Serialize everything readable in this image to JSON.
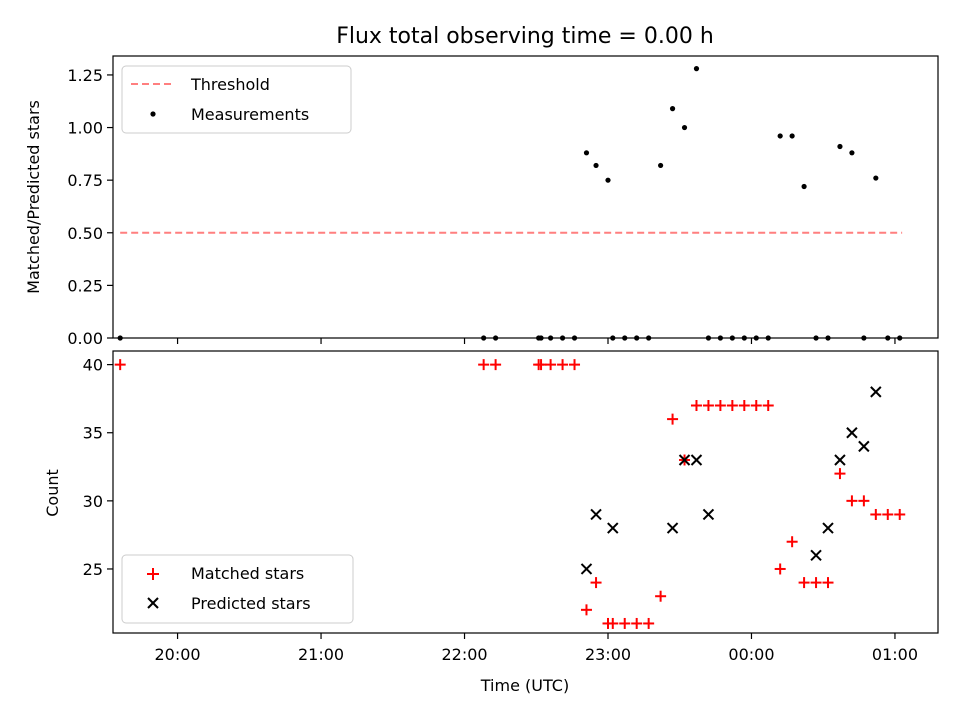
{
  "chart_data": [
    {
      "type": "scatter",
      "title": "Flux total observing time = 0.00 h",
      "xlabel": "",
      "ylabel": "Matched/Predicted stars",
      "ylim": [
        0,
        1.34
      ],
      "yticks": [
        "0.00",
        "0.25",
        "0.50",
        "0.75",
        "1.00",
        "1.25"
      ],
      "xlim": [
        "19:33",
        "01:18"
      ],
      "xticks": [
        "20:00",
        "21:00",
        "22:00",
        "23:00",
        "00:00",
        "01:00"
      ],
      "tick_labels_shown": false,
      "legend_position": "upper left",
      "series": [
        {
          "name": "Threshold",
          "style": "dashed-line",
          "color": "#ff7f7f",
          "x": [
            "19:36",
            "01:03"
          ],
          "y": [
            0.5,
            0.5
          ]
        },
        {
          "name": "Measurements",
          "style": "dot",
          "color": "#000000",
          "x": [
            "19:36",
            "22:08",
            "22:13",
            "22:31",
            "22:32",
            "22:36",
            "22:41",
            "22:46",
            "22:51",
            "22:55",
            "23:00",
            "23:02",
            "23:07",
            "23:12",
            "23:17",
            "23:22",
            "23:27",
            "23:32",
            "23:37",
            "23:42",
            "23:47",
            "23:52",
            "23:57",
            "00:02",
            "00:07",
            "00:12",
            "00:17",
            "00:22",
            "00:27",
            "00:32",
            "00:37",
            "00:42",
            "00:47",
            "00:52",
            "00:57",
            "01:02"
          ],
          "y": [
            0,
            0,
            0,
            0,
            0,
            0,
            0,
            0,
            0.88,
            0.82,
            0.75,
            0,
            0,
            0,
            0,
            0.82,
            1.09,
            1.0,
            1.28,
            0,
            0,
            0,
            0,
            0,
            0,
            0.96,
            0.96,
            0.72,
            0,
            0,
            0.91,
            0.88,
            0,
            0.76,
            0,
            0
          ]
        }
      ]
    },
    {
      "type": "scatter",
      "title": "",
      "xlabel": "Time (UTC)",
      "ylabel": "Count",
      "ylim": [
        20.3,
        41
      ],
      "yticks": [
        "25",
        "30",
        "35",
        "40"
      ],
      "xlim": [
        "19:33",
        "01:18"
      ],
      "xticks": [
        "20:00",
        "21:00",
        "22:00",
        "23:00",
        "00:00",
        "01:00"
      ],
      "legend_position": "lower left",
      "series": [
        {
          "name": "Matched stars",
          "marker": "plus",
          "color": "#ff0000",
          "x": [
            "19:36",
            "22:08",
            "22:13",
            "22:31",
            "22:32",
            "22:36",
            "22:41",
            "22:46",
            "22:51",
            "22:55",
            "23:00",
            "23:02",
            "23:07",
            "23:12",
            "23:17",
            "23:22",
            "23:27",
            "23:32",
            "23:37",
            "23:42",
            "23:47",
            "23:52",
            "23:57",
            "00:02",
            "00:07",
            "00:12",
            "00:17",
            "00:22",
            "00:27",
            "00:32",
            "00:37",
            "00:42",
            "00:47",
            "00:52",
            "00:57",
            "01:02"
          ],
          "y": [
            40,
            40,
            40,
            40,
            40,
            40,
            40,
            40,
            22,
            24,
            21,
            21,
            21,
            21,
            21,
            23,
            36,
            33,
            37,
            37,
            37,
            37,
            37,
            37,
            37,
            25,
            27,
            24,
            24,
            24,
            32,
            30,
            30,
            29,
            29,
            29
          ]
        },
        {
          "name": "Predicted stars",
          "marker": "x",
          "color": "#000000",
          "x": [
            "22:51",
            "22:55",
            "23:02",
            "23:27",
            "23:32",
            "23:37",
            "23:42",
            "00:27",
            "00:32",
            "00:37",
            "00:42",
            "00:47",
            "00:52"
          ],
          "y": [
            25,
            29,
            28,
            28,
            33,
            33,
            29,
            26,
            28,
            33,
            35,
            34,
            38
          ]
        }
      ]
    }
  ]
}
